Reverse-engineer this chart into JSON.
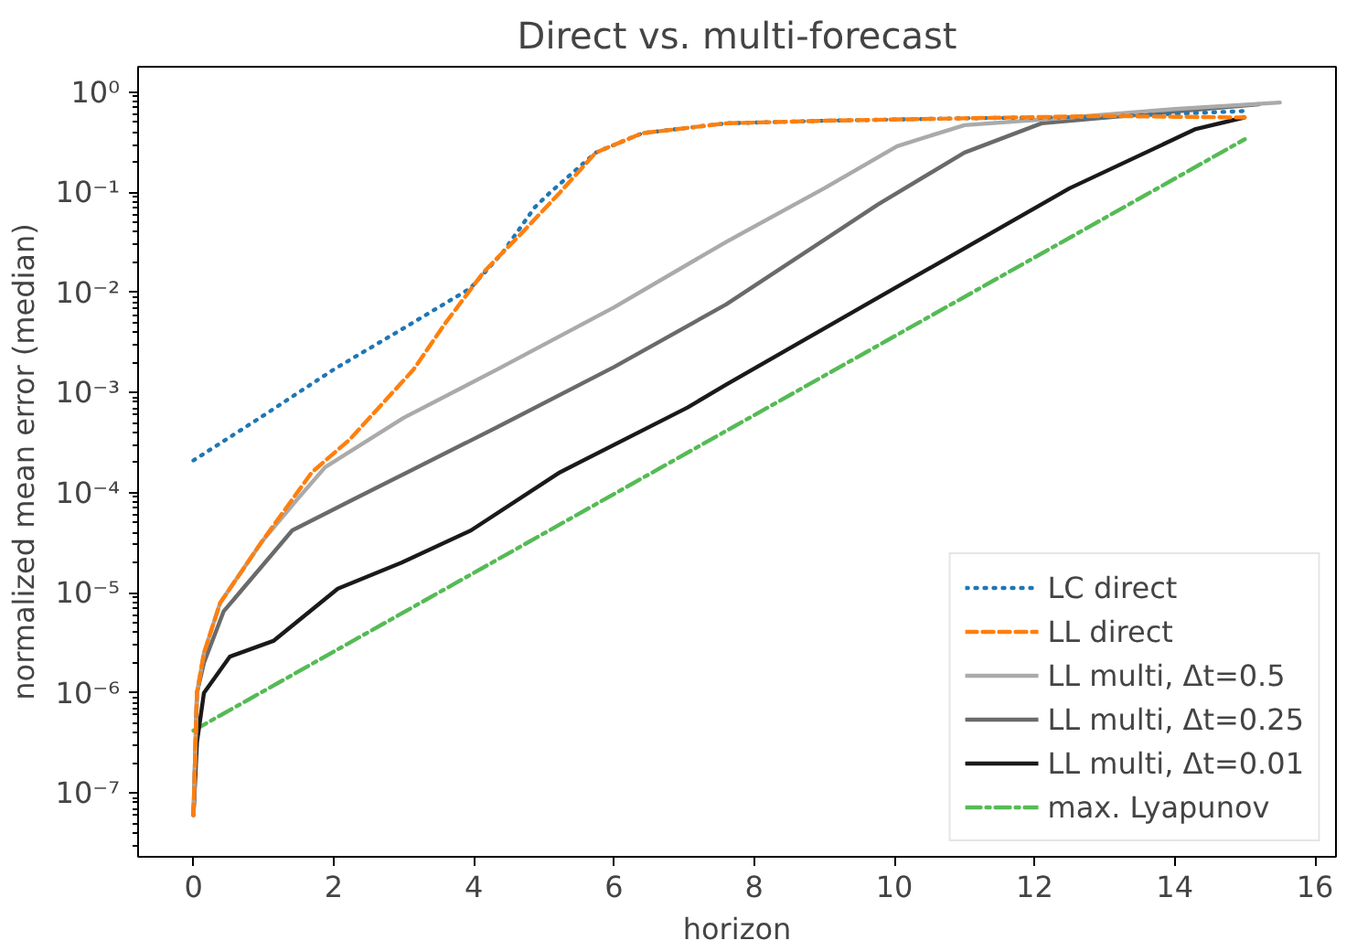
{
  "chart_data": {
    "type": "line",
    "title": "Direct vs. multi-forecast",
    "xlabel": "horizon",
    "ylabel": "normalized mean error (median)",
    "log": "y",
    "grid": false,
    "legend": "bottom right",
    "marker": "none",
    "xlim": [
      -0.79,
      16.3
    ],
    "xticks": [
      0,
      2,
      4,
      6,
      8,
      10,
      12,
      14,
      16
    ],
    "ylim": [
      2.3e-08,
      1.8
    ],
    "yticks": [
      {
        "value": 1e-07,
        "label": "10⁻⁷"
      },
      {
        "value": 1e-06,
        "label": "10⁻⁶"
      },
      {
        "value": 1e-05,
        "label": "10⁻⁵"
      },
      {
        "value": 0.0001,
        "label": "10⁻⁴"
      },
      {
        "value": 0.001,
        "label": "10⁻³"
      },
      {
        "value": 0.01,
        "label": "10⁻²"
      },
      {
        "value": 0.1,
        "label": "10⁻¹"
      },
      {
        "value": 1,
        "label": "10⁰"
      }
    ],
    "series": [
      {
        "name": "LC direct",
        "color": "#1f77b4",
        "line_style": "dotted",
        "x": [
          0,
          1,
          2,
          3,
          3.95,
          4.41,
          4.87,
          5.09,
          5.74,
          6.4,
          7.6,
          9,
          11,
          13,
          15
        ],
        "values": [
          0.00021,
          0.00059,
          0.0017,
          0.0044,
          0.011,
          0.025,
          0.071,
          0.1,
          0.25,
          0.39,
          0.49,
          0.52,
          0.55,
          0.57,
          0.65
        ]
      },
      {
        "name": "LL direct",
        "color": "#ff7f0e",
        "line_style": "dashed",
        "x": [
          0,
          0.05,
          0.15,
          0.38,
          0.97,
          1.69,
          2.23,
          3.14,
          3.59,
          4.14,
          4.68,
          5.23,
          5.74,
          6.4,
          7.6,
          9,
          11,
          13,
          15
        ],
        "values": [
          6e-08,
          1e-06,
          2.5e-06,
          7.9e-06,
          3.2e-05,
          0.00016,
          0.00034,
          0.0017,
          0.0049,
          0.016,
          0.039,
          0.1,
          0.25,
          0.39,
          0.49,
          0.52,
          0.55,
          0.58,
          0.56
        ]
      },
      {
        "name": "LL multi, Δt=0.5",
        "color": "#aaaaaa",
        "line_style": "solid",
        "x": [
          0,
          0.05,
          0.15,
          0.38,
          0.97,
          1.5,
          1.88,
          3,
          4.33,
          6,
          7.6,
          9,
          10.04,
          11,
          12.5,
          14,
          15.5
        ],
        "values": [
          6e-08,
          1e-06,
          2.5e-06,
          7.9e-06,
          3.2e-05,
          8.9e-05,
          0.00018,
          0.00056,
          0.0017,
          0.0071,
          0.032,
          0.11,
          0.29,
          0.47,
          0.56,
          0.68,
          0.79
        ]
      },
      {
        "name": "LL multi, Δt=0.25",
        "color": "#6a6a6a",
        "line_style": "solid",
        "x": [
          0,
          0.05,
          0.15,
          0.43,
          1.41,
          2.33,
          4.33,
          6,
          7.6,
          9.77,
          11,
          12.1,
          13.5,
          15.2
        ],
        "values": [
          6e-08,
          1e-06,
          2e-06,
          6.5e-06,
          4.2e-05,
          8.9e-05,
          0.00045,
          0.0018,
          0.0076,
          0.076,
          0.25,
          0.49,
          0.6,
          0.76
        ]
      },
      {
        "name": "LL multi, Δt=0.01",
        "color": "#1a1a1a",
        "line_style": "solid",
        "x": [
          0,
          0.05,
          0.15,
          0.52,
          1.14,
          2.06,
          2.97,
          3.96,
          5.23,
          7.05,
          7.6,
          9.77,
          12.5,
          14.3,
          14.99
        ],
        "values": [
          6e-08,
          3.2e-07,
          1e-06,
          2.3e-06,
          3.3e-06,
          1.1e-05,
          2e-05,
          4.2e-05,
          0.00016,
          0.00071,
          0.0012,
          0.0089,
          0.11,
          0.43,
          0.56
        ]
      },
      {
        "name": "max. Lyapunov",
        "color": "#55bb55",
        "line_style": "dashdot",
        "x": [
          0,
          15
        ],
        "values": [
          4.2e-07,
          0.34
        ]
      }
    ]
  }
}
